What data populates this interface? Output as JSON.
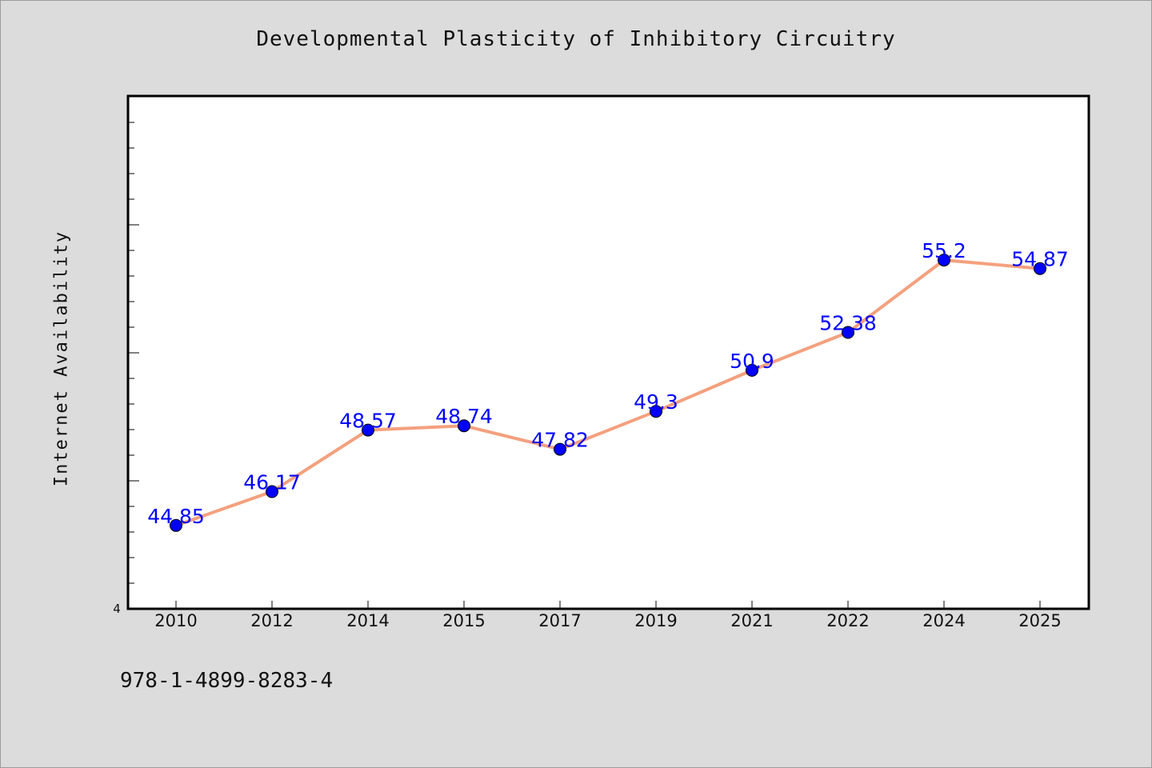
{
  "footer": {
    "code": "978-1-4899-8283-4"
  },
  "colors": {
    "background": "#dcdcdc",
    "plot_background": "#ffffff",
    "line": "#f4a07e",
    "marker": "#0000ff",
    "label": "#0000ff"
  },
  "chart_data": {
    "type": "line",
    "title": "Developmental Plasticity of Inhibitory Circuitry",
    "xlabel": "",
    "ylabel": "Internet Availability",
    "categories": [
      "2010",
      "2012",
      "2014",
      "2015",
      "2017",
      "2019",
      "2021",
      "2022",
      "2024",
      "2025"
    ],
    "series": [
      {
        "values": [
          44.85,
          46.17,
          48.57,
          48.74,
          47.82,
          49.3,
          50.9,
          52.38,
          55.2,
          54.87
        ]
      }
    ],
    "data_labels": [
      "44.85",
      "46.17",
      "48.57",
      "48.74",
      "47.82",
      "49.3",
      "50.9",
      "52.38",
      "55.2",
      "54.87"
    ],
    "y_tick_labels": [
      "4"
    ],
    "ylim": [
      41.6,
      61.6
    ],
    "grid": false,
    "legend": "none"
  }
}
